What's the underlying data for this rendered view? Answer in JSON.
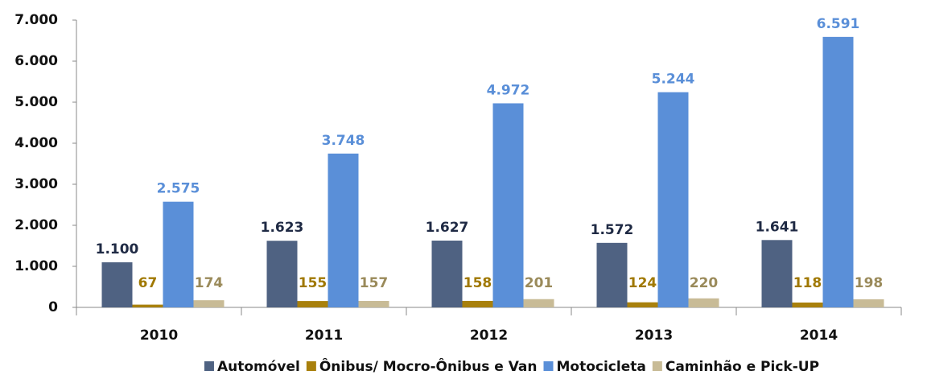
{
  "chart_data": {
    "type": "bar",
    "categories": [
      "2010",
      "2011",
      "2012",
      "2013",
      "2014"
    ],
    "series": [
      {
        "name": "Automóvel",
        "color": "#4f6282",
        "label_color": "#1f2a44",
        "values": [
          1100,
          1623,
          1627,
          1572,
          1641
        ],
        "value_labels": [
          "1.100",
          "1.623",
          "1.627",
          "1.572",
          "1.641"
        ]
      },
      {
        "name": "Ônibus/ Mocro-Ônibus e Van",
        "color": "#a8800c",
        "label_color": "#a07800",
        "values": [
          67,
          155,
          158,
          124,
          118
        ],
        "value_labels": [
          "67",
          "155",
          "158",
          "124",
          "118"
        ]
      },
      {
        "name": "Motocicleta",
        "color": "#5a8fd8",
        "label_color": "#5a8fd8",
        "values": [
          2575,
          3748,
          4972,
          5244,
          6591
        ],
        "value_labels": [
          "2.575",
          "3.748",
          "4.972",
          "5.244",
          "6.591"
        ]
      },
      {
        "name": "Caminhão e Pick-UP",
        "color": "#c8bb96",
        "label_color": "#9a8a5a",
        "values": [
          174,
          157,
          201,
          220,
          198
        ],
        "value_labels": [
          "174",
          "157",
          "201",
          "220",
          "198"
        ]
      }
    ],
    "ylim": [
      0,
      7000
    ],
    "yticks": [
      {
        "value": 0,
        "label": "0"
      },
      {
        "value": 1000,
        "label": "1.000"
      },
      {
        "value": 2000,
        "label": "2.000"
      },
      {
        "value": 3000,
        "label": "3.000"
      },
      {
        "value": 4000,
        "label": "4.000"
      },
      {
        "value": 5000,
        "label": "5.000"
      },
      {
        "value": 6000,
        "label": "6.000"
      },
      {
        "value": 7000,
        "label": "7.000"
      }
    ],
    "grid": false,
    "legend": "bottom"
  }
}
